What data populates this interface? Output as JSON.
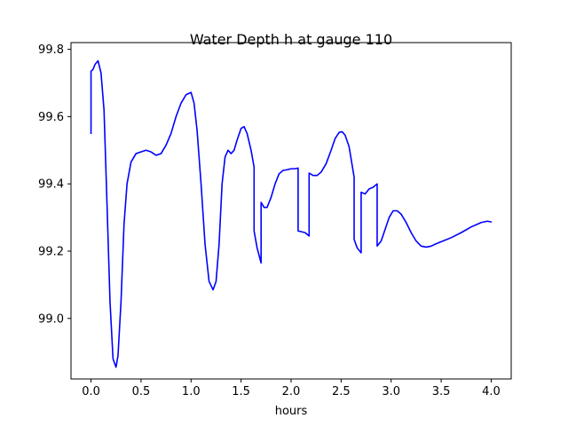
{
  "chart_data": {
    "type": "line",
    "title": "Water Depth h at gauge 110",
    "xlabel": "hours",
    "ylabel": "",
    "xlim": [
      -0.2,
      4.2
    ],
    "ylim": [
      98.82,
      99.82
    ],
    "x_ticks": [
      0.0,
      0.5,
      1.0,
      1.5,
      2.0,
      2.5,
      3.0,
      3.5,
      4.0
    ],
    "x_tick_labels": [
      "0.0",
      "0.5",
      "1.0",
      "1.5",
      "2.0",
      "2.5",
      "3.0",
      "3.5",
      "4.0"
    ],
    "y_ticks": [
      99.0,
      99.2,
      99.4,
      99.6,
      99.8
    ],
    "y_tick_labels": [
      "99.0",
      "99.2",
      "99.4",
      "99.6",
      "99.8"
    ],
    "grid": false,
    "series": [
      {
        "color": "#0000ff",
        "x": [
          0.0,
          0.0,
          0.02,
          0.04,
          0.07,
          0.1,
          0.13,
          0.16,
          0.19,
          0.22,
          0.25,
          0.27,
          0.3,
          0.33,
          0.36,
          0.4,
          0.45,
          0.5,
          0.55,
          0.6,
          0.65,
          0.7,
          0.75,
          0.8,
          0.85,
          0.9,
          0.95,
          1.0,
          1.03,
          1.06,
          1.1,
          1.14,
          1.18,
          1.22,
          1.25,
          1.28,
          1.31,
          1.34,
          1.37,
          1.4,
          1.43,
          1.46,
          1.5,
          1.53,
          1.56,
          1.6,
          1.63,
          1.63,
          1.66,
          1.7,
          1.7,
          1.73,
          1.76,
          1.8,
          1.84,
          1.88,
          1.92,
          1.96,
          2.0,
          2.04,
          2.07,
          2.07,
          2.1,
          2.14,
          2.18,
          2.18,
          2.22,
          2.26,
          2.3,
          2.35,
          2.4,
          2.44,
          2.48,
          2.51,
          2.54,
          2.58,
          2.63,
          2.63,
          2.66,
          2.7,
          2.7,
          2.74,
          2.78,
          2.82,
          2.86,
          2.86,
          2.9,
          2.94,
          2.98,
          3.02,
          3.06,
          3.1,
          3.15,
          3.2,
          3.25,
          3.3,
          3.35,
          3.4,
          3.45,
          3.5,
          3.6,
          3.7,
          3.8,
          3.9,
          3.96,
          4.0
        ],
        "y": [
          99.55,
          99.735,
          99.74,
          99.755,
          99.766,
          99.73,
          99.62,
          99.34,
          99.05,
          98.88,
          98.855,
          98.89,
          99.05,
          99.28,
          99.4,
          99.465,
          99.49,
          99.495,
          99.5,
          99.495,
          99.485,
          99.49,
          99.515,
          99.55,
          99.6,
          99.64,
          99.665,
          99.672,
          99.64,
          99.56,
          99.4,
          99.22,
          99.11,
          99.085,
          99.11,
          99.22,
          99.4,
          99.48,
          99.5,
          99.49,
          99.5,
          99.53,
          99.565,
          99.57,
          99.55,
          99.5,
          99.45,
          99.26,
          99.21,
          99.165,
          99.345,
          99.33,
          99.33,
          99.36,
          99.4,
          99.43,
          99.44,
          99.442,
          99.445,
          99.445,
          99.447,
          99.26,
          99.258,
          99.255,
          99.245,
          99.432,
          99.425,
          99.425,
          99.435,
          99.46,
          99.5,
          99.535,
          99.553,
          99.555,
          99.545,
          99.51,
          99.42,
          99.235,
          99.21,
          99.195,
          99.375,
          99.37,
          99.385,
          99.39,
          99.4,
          99.215,
          99.23,
          99.265,
          99.3,
          99.32,
          99.32,
          99.31,
          99.285,
          99.255,
          99.23,
          99.215,
          99.212,
          99.215,
          99.222,
          99.228,
          99.24,
          99.255,
          99.272,
          99.285,
          99.289,
          99.287
        ]
      }
    ]
  }
}
